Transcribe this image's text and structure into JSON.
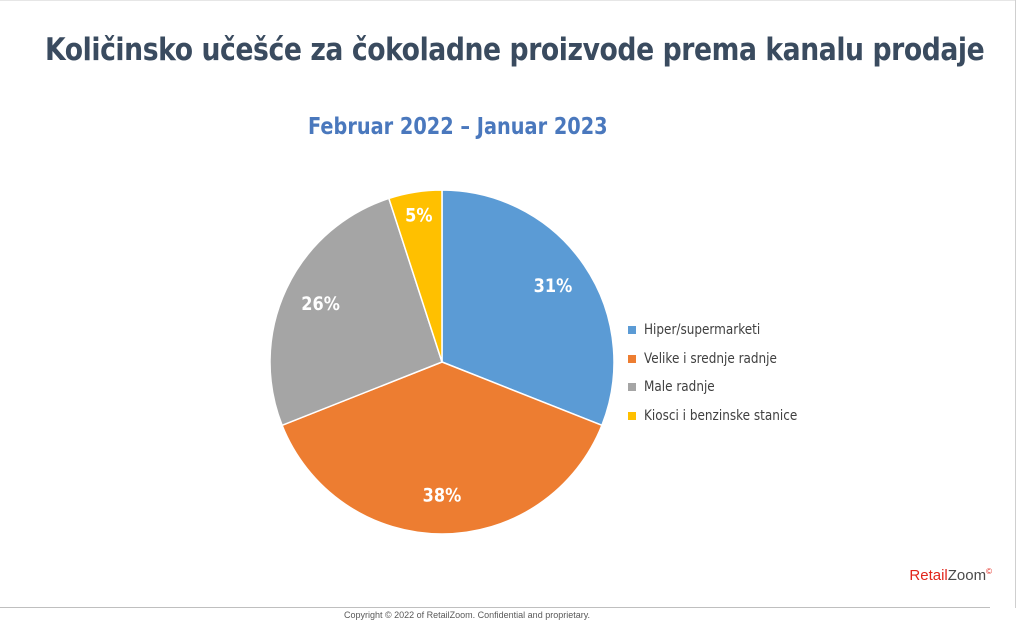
{
  "header": {
    "title": "Količinsko učešće za čokoladne proizvode prema kanalu prodaje"
  },
  "chart_data": {
    "type": "pie",
    "subtitle": "Februar 2022 – Januar 2023",
    "categories": [
      "Hiper/supermarketi",
      "Velike i srednje radnje",
      "Male radnje",
      "Kiosci i benzinske stanice"
    ],
    "values": [
      31,
      38,
      26,
      5
    ],
    "value_labels": [
      "31%",
      "38%",
      "26%",
      "5%"
    ],
    "colors": [
      "#5b9bd5",
      "#ed7d31",
      "#a5a5a5",
      "#ffc000"
    ],
    "label_color": "#ffffff",
    "legend_position": "right",
    "start_angle": "12 o'clock",
    "direction": "clockwise"
  },
  "brand": {
    "retail": "Retail",
    "zoom": "Zoom",
    "mark": "©"
  },
  "footer": {
    "copyright": "Copyright © 2022 of RetailZoom. Confidential and proprietary."
  }
}
